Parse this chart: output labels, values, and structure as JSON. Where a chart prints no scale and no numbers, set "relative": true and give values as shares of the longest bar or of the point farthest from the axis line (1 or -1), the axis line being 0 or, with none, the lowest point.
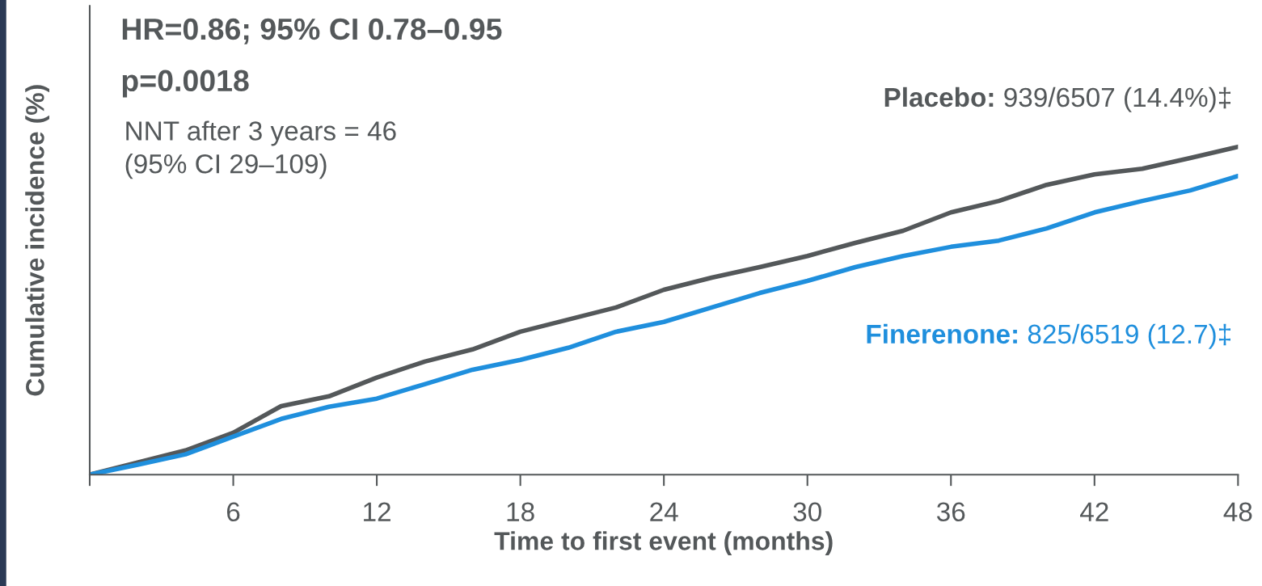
{
  "chart_data": {
    "type": "line",
    "relative": true,
    "xlabel": "Time to first event (months)",
    "ylabel": "Cumulative incidence (%)",
    "xlim": [
      0,
      48
    ],
    "xticks": [
      {
        "value": 0,
        "label": null
      },
      6,
      12,
      18,
      24,
      30,
      36,
      42,
      48
    ],
    "x": [
      0,
      2,
      4,
      6,
      8,
      10,
      12,
      14,
      16,
      18,
      20,
      22,
      24,
      26,
      28,
      30,
      32,
      34,
      36,
      38,
      40,
      42,
      44,
      46,
      48
    ],
    "series": [
      {
        "name": "Placebo:",
        "color": "#54585a",
        "values": [
          0,
          0.037,
          0.074,
          0.128,
          0.209,
          0.239,
          0.296,
          0.345,
          0.382,
          0.436,
          0.473,
          0.51,
          0.564,
          0.601,
          0.633,
          0.667,
          0.707,
          0.744,
          0.8,
          0.835,
          0.884,
          0.916,
          0.933,
          0.966,
          1
        ]
      },
      {
        "name": "Finerenone:",
        "color": "#1f8fdd",
        "values": [
          0,
          0.03,
          0.062,
          0.116,
          0.17,
          0.207,
          0.232,
          0.276,
          0.32,
          0.35,
          0.387,
          0.436,
          0.466,
          0.51,
          0.554,
          0.591,
          0.633,
          0.667,
          0.695,
          0.714,
          0.751,
          0.8,
          0.835,
          0.867,
          0.911
        ]
      }
    ],
    "annotations": [
      "HR=0.86; 95% CI 0.78–0.95",
      "p=0.0018",
      "NNT after 3 years = 46\n(95% CI 29–109)",
      "939/6507 (14.4%)‡",
      "825/6519 (12.7)‡"
    ],
    "legend": false,
    "grid": false
  }
}
